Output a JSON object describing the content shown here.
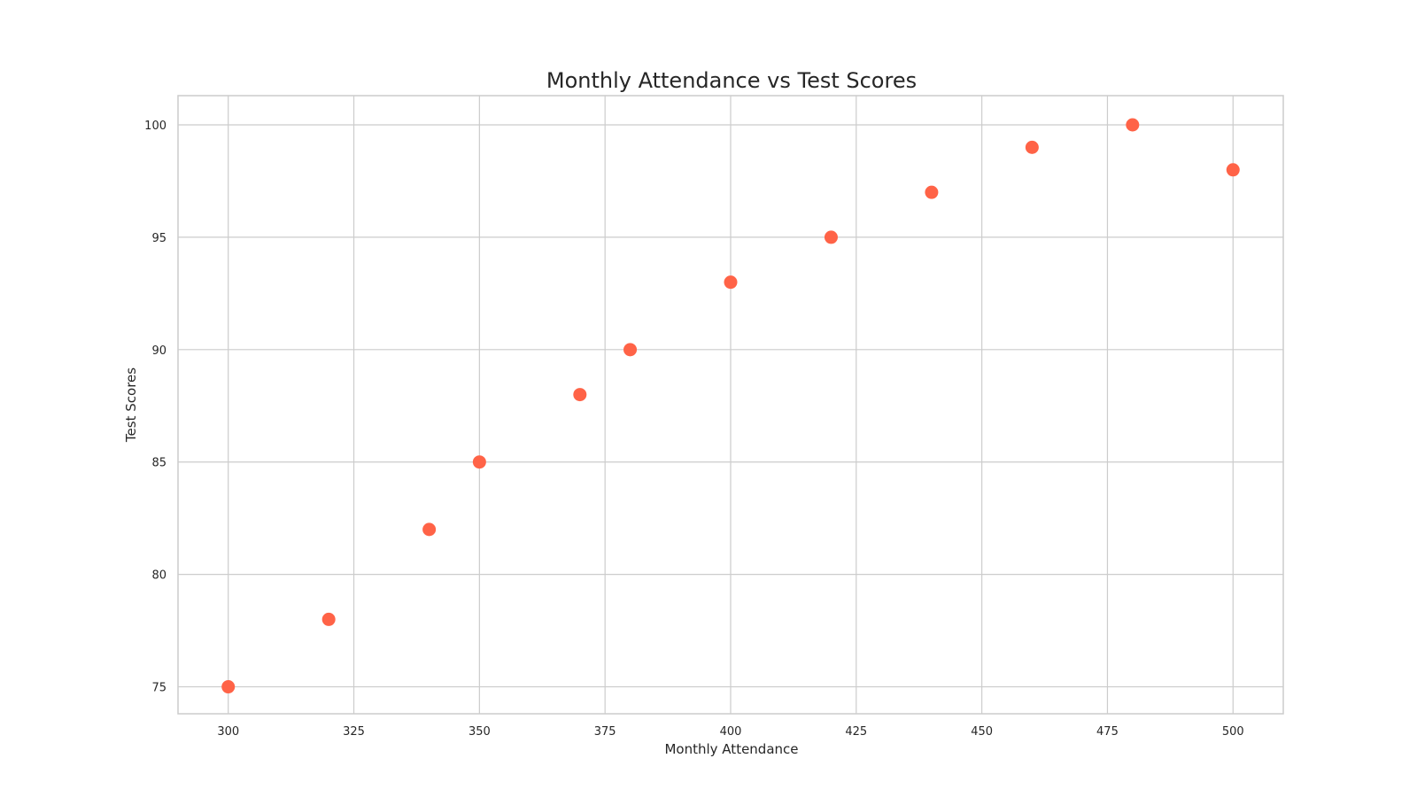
{
  "chart_data": {
    "type": "scatter",
    "title": "Monthly Attendance vs Test Scores",
    "xlabel": "Monthly Attendance",
    "ylabel": "Test Scores",
    "x": [
      300,
      320,
      340,
      350,
      370,
      380,
      400,
      420,
      440,
      460,
      480,
      500
    ],
    "y": [
      75,
      78,
      82,
      85,
      88,
      90,
      93,
      95,
      97,
      99,
      100,
      98
    ],
    "xlim": [
      290,
      510
    ],
    "ylim": [
      73.8,
      101.3
    ],
    "xticks": [
      300,
      325,
      350,
      375,
      400,
      425,
      450,
      475,
      500
    ],
    "yticks": [
      75,
      80,
      85,
      90,
      95,
      100
    ],
    "grid": true,
    "marker_color": "#ff6347"
  }
}
